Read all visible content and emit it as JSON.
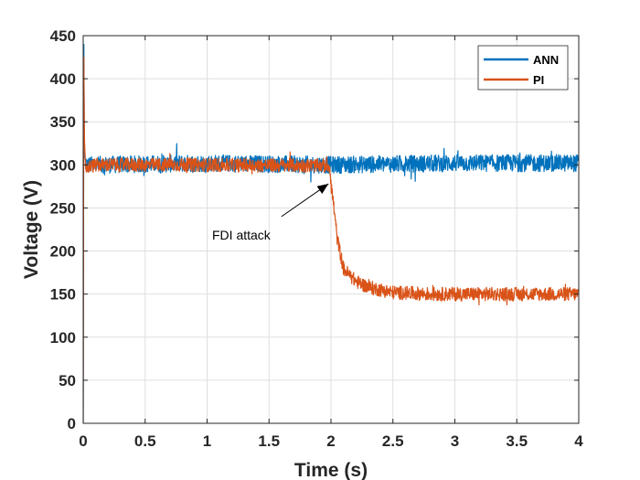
{
  "chart_data": {
    "type": "line",
    "title": "",
    "xlabel": "Time (s)",
    "ylabel": "Voltage (V)",
    "xlim": [
      0,
      4
    ],
    "ylim": [
      0,
      450
    ],
    "xticks": [
      0,
      0.5,
      1,
      1.5,
      2,
      2.5,
      3,
      3.5,
      4
    ],
    "xtick_labels": [
      "0",
      "0.5",
      "1",
      "1.5",
      "2",
      "2.5",
      "3",
      "3.5",
      "4"
    ],
    "yticks": [
      0,
      50,
      100,
      150,
      200,
      250,
      300,
      350,
      400,
      450
    ],
    "ytick_labels": [
      "0",
      "50",
      "100",
      "150",
      "200",
      "250",
      "300",
      "350",
      "400",
      "450"
    ],
    "grid": true,
    "legend_position": "top-right",
    "series": [
      {
        "name": "ANN",
        "color": "#0072BD",
        "x": [
          0,
          0.005,
          0.01,
          0.03,
          0.1,
          1,
          2,
          3,
          4
        ],
        "values": [
          0,
          440,
          310,
          300,
          300,
          302,
          300,
          302,
          302
        ],
        "noise_amplitude": 10
      },
      {
        "name": "PI",
        "color": "#D95319",
        "x": [
          0,
          0.005,
          0.01,
          0.02,
          0.05,
          0.1,
          1,
          1.99,
          2.0,
          2.02,
          2.05,
          2.1,
          2.15,
          2.2,
          2.3,
          2.5,
          2.8,
          3,
          3.5,
          4
        ],
        "values": [
          0,
          425,
          330,
          295,
          298,
          300,
          300,
          299,
          280,
          255,
          215,
          180,
          172,
          165,
          158,
          152,
          150,
          150,
          150,
          150
        ],
        "noise_amplitude": 8
      }
    ],
    "annotations": [
      {
        "text": "FDI attack",
        "arrow_to": [
          1.98,
          278
        ],
        "text_at": [
          1.05,
          220
        ]
      }
    ]
  }
}
